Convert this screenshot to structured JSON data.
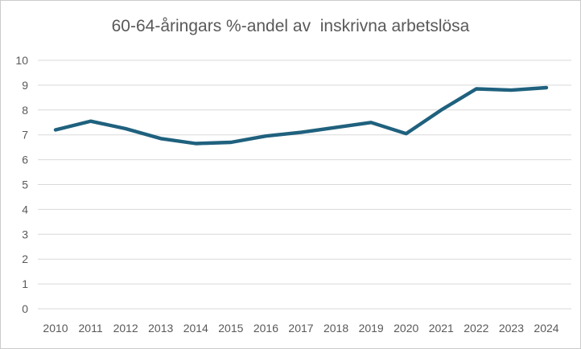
{
  "chart_data": {
    "type": "line",
    "title": "60-64-åringars %-andel av  inskrivna arbetslösa",
    "xlabel": "",
    "ylabel": "",
    "categories": [
      "2010",
      "2011",
      "2012",
      "2013",
      "2014",
      "2015",
      "2016",
      "2017",
      "2018",
      "2019",
      "2020",
      "2021",
      "2022",
      "2023",
      "2024"
    ],
    "series": [
      {
        "name": "60-64-åringars %-andel av inskrivna arbetslösa",
        "values": [
          7.2,
          7.55,
          7.25,
          6.85,
          6.65,
          6.7,
          6.95,
          7.1,
          7.3,
          7.5,
          7.05,
          8.0,
          8.85,
          8.8,
          8.9
        ]
      }
    ],
    "yticks": [
      0,
      1,
      2,
      3,
      4,
      5,
      6,
      7,
      8,
      9,
      10
    ],
    "ylim": [
      0,
      10
    ],
    "grid": "horizontal",
    "legend": "none",
    "colors": {
      "line": "#1f617e",
      "gridline": "#d9d9d9",
      "tick_text": "#595959",
      "title_text": "#595959",
      "frame_border": "#cbcbcb",
      "background": "#ffffff"
    }
  }
}
